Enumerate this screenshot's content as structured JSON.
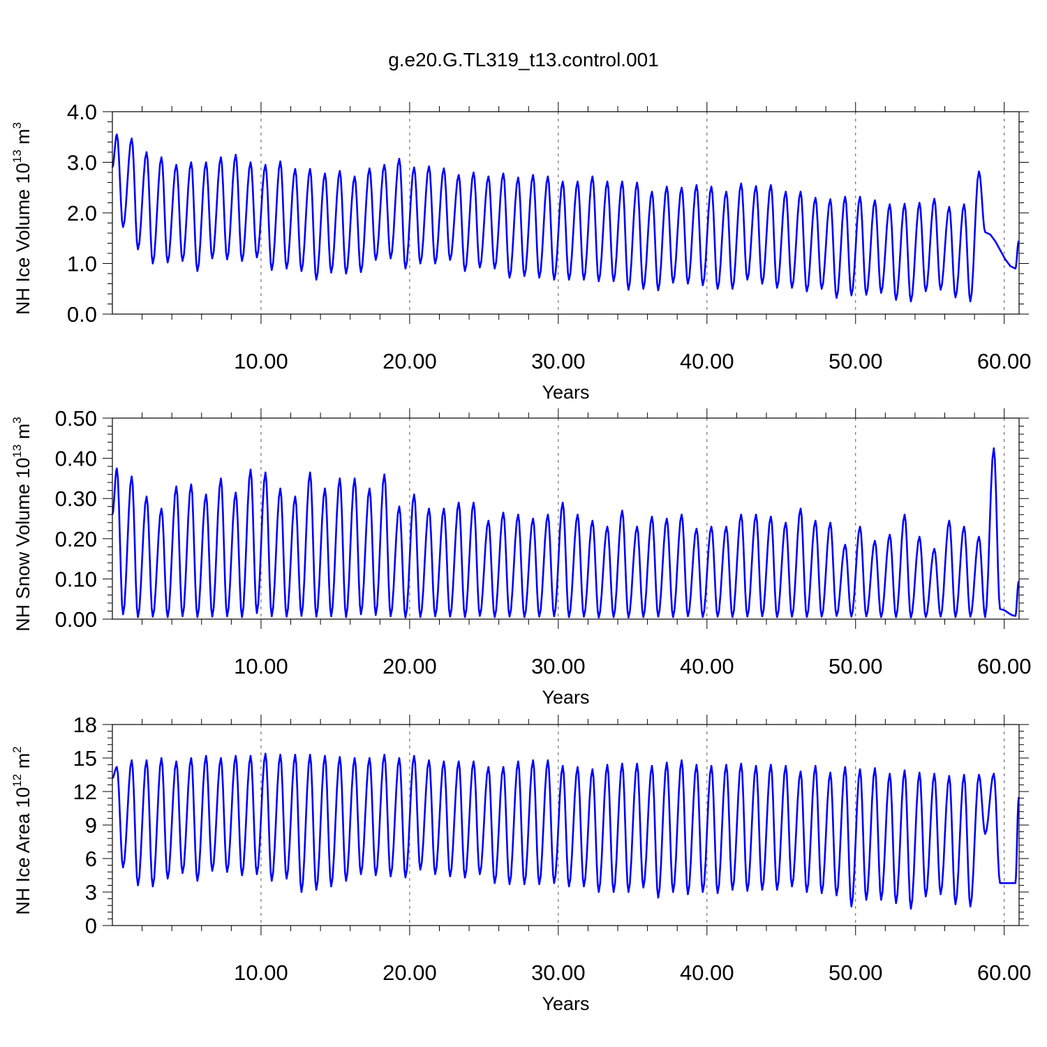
{
  "title": "g.e20.G.TL319_t13.control.001",
  "colors": {
    "line": "#0000ff",
    "axis": "#000000",
    "grid": "#555555"
  },
  "chart_data": [
    {
      "type": "line",
      "ylabel": {
        "prefix": "NH Ice Volume 10",
        "exp": "13",
        "unit": " m",
        "unit_exp": "3"
      },
      "xlabel": "Years",
      "xlim": [
        0,
        61
      ],
      "ylim": [
        0,
        4
      ],
      "yticks": [
        "0.0",
        "1.0",
        "2.0",
        "3.0",
        "4.0"
      ],
      "ytick_values": [
        0,
        1,
        2,
        3,
        4
      ],
      "xticks": [
        "10.00",
        "20.00",
        "30.00",
        "40.00",
        "50.00",
        "60.00"
      ],
      "xtick_values": [
        10,
        20,
        30,
        40,
        50,
        60
      ],
      "grid_x": true,
      "seasonal": {
        "max": [
          3.55,
          3.47,
          3.2,
          3.1,
          2.95,
          3.0,
          3.0,
          3.1,
          3.15,
          3.0,
          2.95,
          3.02,
          2.87,
          2.87,
          2.78,
          2.83,
          2.72,
          2.88,
          2.95,
          3.07,
          2.9,
          2.92,
          2.88,
          2.75,
          2.8,
          2.72,
          2.78,
          2.7,
          2.75,
          2.72,
          2.62,
          2.62,
          2.72,
          2.62,
          2.62,
          2.6,
          2.42,
          2.52,
          2.5,
          2.55,
          2.52,
          2.42,
          2.58,
          2.53,
          2.55,
          2.42,
          2.42,
          2.3,
          2.27,
          2.32,
          2.32,
          2.25,
          2.17,
          2.18,
          2.2,
          2.28,
          2.12,
          2.17,
          2.82
        ],
        "min": [
          1.72,
          1.28,
          1.0,
          1.02,
          1.05,
          0.85,
          1.1,
          1.08,
          1.05,
          1.12,
          0.87,
          0.9,
          0.85,
          0.68,
          0.82,
          0.8,
          0.83,
          1.07,
          1.1,
          0.9,
          1.0,
          1.0,
          1.07,
          0.85,
          0.92,
          0.9,
          0.72,
          0.75,
          0.72,
          0.68,
          0.68,
          0.68,
          0.65,
          0.65,
          0.48,
          0.5,
          0.47,
          0.62,
          0.6,
          0.57,
          0.5,
          0.5,
          0.68,
          0.6,
          0.52,
          0.52,
          0.45,
          0.5,
          0.32,
          0.37,
          0.38,
          0.42,
          0.28,
          0.25,
          0.45,
          0.48,
          0.33,
          0.25,
          1.62
        ],
        "start": 2.9,
        "end": 1.45,
        "end_min": 0.9
      }
    },
    {
      "type": "line",
      "ylabel": {
        "prefix": "NH Snow Volume 10",
        "exp": "13",
        "unit": " m",
        "unit_exp": "3"
      },
      "xlabel": "Years",
      "xlim": [
        0,
        61
      ],
      "ylim": [
        0,
        0.5
      ],
      "yticks": [
        "0.00",
        "0.10",
        "0.20",
        "0.30",
        "0.40",
        "0.50"
      ],
      "ytick_values": [
        0,
        0.1,
        0.2,
        0.3,
        0.4,
        0.5
      ],
      "xticks": [
        "10.00",
        "20.00",
        "30.00",
        "40.00",
        "50.00",
        "60.00"
      ],
      "xtick_values": [
        10,
        20,
        30,
        40,
        50,
        60
      ],
      "grid_x": true,
      "seasonal": {
        "max": [
          0.375,
          0.355,
          0.305,
          0.275,
          0.33,
          0.335,
          0.31,
          0.35,
          0.315,
          0.372,
          0.365,
          0.325,
          0.305,
          0.365,
          0.325,
          0.35,
          0.35,
          0.325,
          0.36,
          0.28,
          0.31,
          0.275,
          0.275,
          0.29,
          0.29,
          0.245,
          0.265,
          0.26,
          0.25,
          0.26,
          0.29,
          0.26,
          0.245,
          0.23,
          0.27,
          0.23,
          0.255,
          0.25,
          0.26,
          0.225,
          0.23,
          0.23,
          0.26,
          0.26,
          0.255,
          0.24,
          0.275,
          0.245,
          0.24,
          0.185,
          0.23,
          0.195,
          0.21,
          0.26,
          0.205,
          0.175,
          0.245,
          0.23,
          0.205,
          0.425
        ],
        "min": [
          0.012,
          0.005,
          0.006,
          0.005,
          0.007,
          0.005,
          0.006,
          0.007,
          0.005,
          0.015,
          0.007,
          0.006,
          0.008,
          0.006,
          0.007,
          0.005,
          0.012,
          0.01,
          0.007,
          0.004,
          0.005,
          0.007,
          0.006,
          0.005,
          0.008,
          0.005,
          0.006,
          0.005,
          0.006,
          0.007,
          0.005,
          0.006,
          0.004,
          0.005,
          0.004,
          0.005,
          0.006,
          0.005,
          0.007,
          0.005,
          0.006,
          0.005,
          0.006,
          0.007,
          0.005,
          0.006,
          0.005,
          0.006,
          0.008,
          0.006,
          0.007,
          0.005,
          0.005,
          0.004,
          0.005,
          0.006,
          0.005,
          0.006,
          0.005,
          0.025
        ],
        "start": 0.26,
        "end": 0.095,
        "end_min": 0.008
      }
    },
    {
      "type": "line",
      "ylabel": {
        "prefix": "NH Ice Area 10",
        "exp": "12",
        "unit": " m",
        "unit_exp": "2"
      },
      "xlabel": "Years",
      "xlim": [
        0,
        61
      ],
      "ylim": [
        0,
        18
      ],
      "yticks": [
        "0",
        "3",
        "6",
        "9",
        "12",
        "15",
        "18"
      ],
      "ytick_values": [
        0,
        3,
        6,
        9,
        12,
        15,
        18
      ],
      "xticks": [
        "10.00",
        "20.00",
        "30.00",
        "40.00",
        "50.00",
        "60.00"
      ],
      "xtick_values": [
        10,
        20,
        30,
        40,
        50,
        60
      ],
      "grid_x": true,
      "seasonal": {
        "max": [
          14.2,
          14.8,
          14.8,
          15.0,
          14.7,
          15.0,
          15.2,
          15.0,
          15.2,
          15.2,
          15.4,
          15.3,
          15.3,
          15.3,
          15.2,
          15.1,
          15.0,
          15.0,
          15.3,
          15.0,
          15.2,
          14.8,
          14.7,
          14.7,
          14.7,
          14.2,
          14.2,
          14.7,
          14.8,
          14.8,
          14.3,
          14.2,
          14.0,
          14.4,
          14.5,
          14.5,
          14.3,
          14.6,
          14.8,
          14.4,
          14.3,
          14.4,
          14.5,
          14.3,
          14.4,
          14.3,
          13.8,
          14.3,
          13.7,
          14.2,
          14.0,
          14.1,
          13.6,
          13.9,
          13.7,
          13.6,
          13.4,
          13.5,
          13.5,
          13.6
        ],
        "min": [
          5.2,
          3.6,
          3.5,
          4.2,
          4.7,
          4.0,
          4.9,
          4.8,
          4.5,
          4.6,
          4.0,
          4.2,
          3.0,
          3.2,
          3.5,
          4.0,
          4.6,
          4.5,
          4.4,
          4.3,
          5.0,
          4.6,
          4.4,
          4.3,
          4.6,
          3.8,
          3.7,
          3.7,
          3.7,
          3.8,
          3.5,
          3.5,
          3.0,
          3.0,
          3.0,
          3.4,
          2.5,
          3.0,
          2.8,
          3.0,
          2.9,
          3.2,
          3.1,
          3.2,
          3.2,
          3.5,
          3.0,
          2.9,
          2.7,
          1.7,
          2.3,
          2.3,
          2.0,
          1.5,
          2.6,
          2.8,
          1.9,
          1.7,
          8.2,
          3.8
        ],
        "start": 13.2,
        "end": 11.5,
        "end_min": 3.8
      }
    }
  ]
}
